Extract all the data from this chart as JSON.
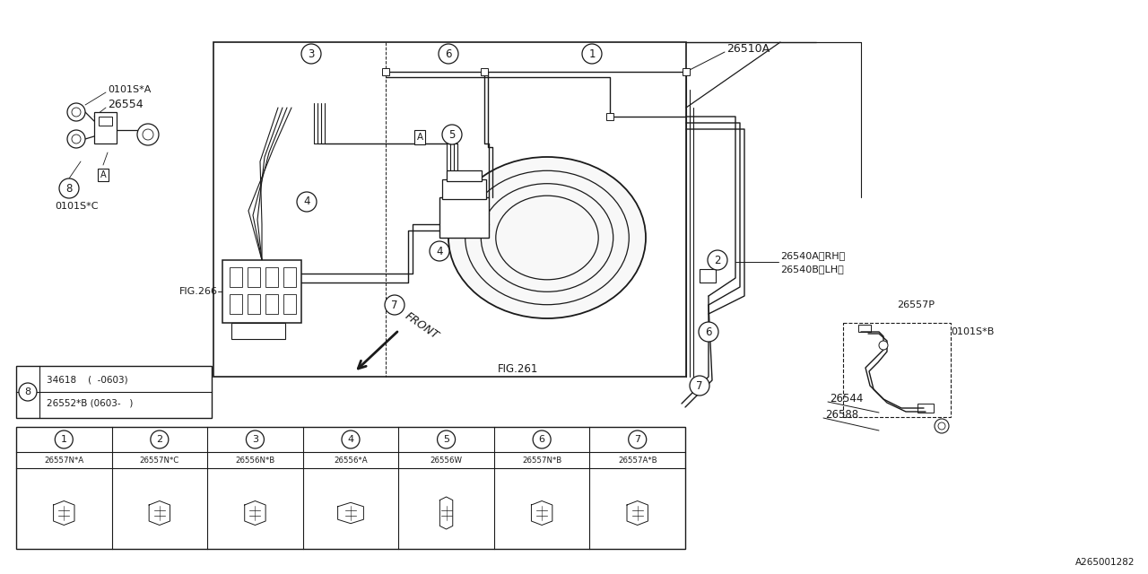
{
  "bg_color": "#ffffff",
  "line_color": "#1a1a1a",
  "fig_ref1": "FIG.266",
  "fig_ref2": "FIG.261",
  "part_numbers": {
    "main": "26510A",
    "side_explode": "26554",
    "side_label1": "0101S*A",
    "side_label2": "0101S*C",
    "right_upper": "26540A〈RH〉",
    "right_lower": "26540B〈LH〉",
    "right_p": "26557P",
    "right_b": "0101S*B",
    "right_26544": "26544",
    "right_26588": "26588",
    "diagram_id": "A265001282"
  },
  "table_items": [
    {
      "num": 1,
      "code": "26557N*A"
    },
    {
      "num": 2,
      "code": "26557N*C"
    },
    {
      "num": 3,
      "code": "26556N*B"
    },
    {
      "num": 4,
      "code": "26556*A"
    },
    {
      "num": 5,
      "code": "26556W"
    },
    {
      "num": 6,
      "code": "26557N*B"
    },
    {
      "num": 7,
      "code": "26557A*B"
    }
  ],
  "item8_table": [
    {
      "code": "34618  (  -0603)",
      "range": ""
    },
    {
      "code": "26552*B (0603-  )",
      "range": ""
    }
  ],
  "front_label": "FRONT"
}
